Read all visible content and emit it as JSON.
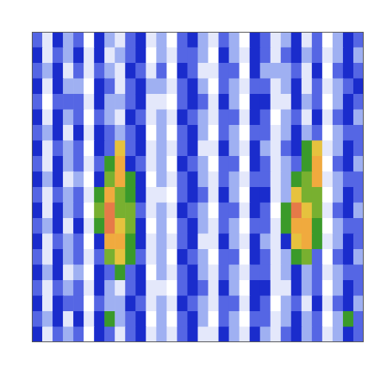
{
  "chart_data": {
    "type": "heatmap",
    "tick_labels": false,
    "grid": false,
    "cells": [
      [
        3,
        1,
        4,
        2,
        3,
        0,
        4,
        2,
        1,
        3,
        4,
        1,
        2,
        0,
        3,
        4,
        2,
        1,
        3,
        2,
        0,
        4,
        3,
        1,
        2,
        4,
        1,
        3,
        0,
        2,
        4,
        3
      ],
      [
        4,
        1,
        3,
        2,
        4,
        1,
        4,
        1,
        2,
        3,
        4,
        0,
        2,
        1,
        3,
        3,
        2,
        0,
        4,
        2,
        1,
        4,
        3,
        1,
        3,
        4,
        2,
        3,
        1,
        2,
        4,
        2
      ],
      [
        3,
        2,
        4,
        1,
        3,
        1,
        3,
        2,
        1,
        4,
        3,
        1,
        3,
        0,
        4,
        3,
        1,
        1,
        3,
        3,
        0,
        4,
        2,
        2,
        2,
        3,
        1,
        4,
        0,
        3,
        4,
        3
      ],
      [
        4,
        1,
        4,
        2,
        2,
        0,
        4,
        3,
        1,
        3,
        4,
        2,
        2,
        1,
        3,
        4,
        2,
        0,
        3,
        2,
        1,
        3,
        3,
        1,
        2,
        4,
        1,
        3,
        1,
        2,
        3,
        4
      ],
      [
        3,
        0,
        3,
        3,
        3,
        1,
        4,
        2,
        2,
        3,
        4,
        1,
        1,
        0,
        3,
        4,
        3,
        1,
        4,
        2,
        0,
        4,
        4,
        1,
        1,
        4,
        2,
        3,
        0,
        2,
        4,
        3
      ],
      [
        4,
        1,
        4,
        2,
        3,
        0,
        3,
        2,
        1,
        4,
        3,
        1,
        2,
        1,
        4,
        3,
        2,
        1,
        3,
        3,
        1,
        4,
        3,
        0,
        2,
        3,
        1,
        4,
        1,
        3,
        4,
        2
      ],
      [
        3,
        2,
        4,
        1,
        4,
        1,
        4,
        3,
        2,
        3,
        4,
        0,
        2,
        0,
        3,
        4,
        2,
        0,
        3,
        2,
        0,
        3,
        3,
        1,
        2,
        4,
        2,
        3,
        0,
        2,
        3,
        3
      ],
      [
        4,
        1,
        3,
        2,
        3,
        0,
        4,
        3,
        7,
        3,
        4,
        1,
        2,
        1,
        3,
        4,
        1,
        1,
        4,
        2,
        1,
        4,
        2,
        1,
        3,
        4,
        5,
        7,
        1,
        2,
        4,
        3
      ],
      [
        3,
        1,
        4,
        2,
        3,
        1,
        3,
        5,
        8,
        4,
        3,
        1,
        2,
        0,
        4,
        3,
        2,
        0,
        3,
        3,
        0,
        4,
        3,
        1,
        2,
        3,
        5,
        8,
        0,
        3,
        4,
        2
      ],
      [
        4,
        2,
        4,
        1,
        2,
        0,
        4,
        6,
        8,
        5,
        4,
        0,
        2,
        1,
        3,
        4,
        2,
        1,
        3,
        2,
        1,
        3,
        3,
        1,
        2,
        5,
        6,
        8,
        1,
        2,
        3,
        3
      ],
      [
        3,
        1,
        3,
        2,
        3,
        1,
        5,
        8,
        6,
        5,
        4,
        1,
        1,
        0,
        3,
        4,
        3,
        1,
        4,
        2,
        0,
        4,
        4,
        1,
        2,
        7,
        6,
        6,
        0,
        2,
        4,
        3
      ],
      [
        4,
        1,
        4,
        2,
        3,
        0,
        6,
        9,
        6,
        6,
        3,
        1,
        2,
        1,
        4,
        3,
        2,
        0,
        3,
        3,
        1,
        4,
        3,
        0,
        5,
        9,
        7,
        6,
        1,
        3,
        4,
        2
      ],
      [
        3,
        2,
        4,
        1,
        4,
        1,
        5,
        9,
        7,
        6,
        4,
        0,
        2,
        0,
        3,
        4,
        2,
        1,
        3,
        2,
        0,
        3,
        3,
        1,
        5,
        8,
        8,
        5,
        0,
        2,
        3,
        3
      ],
      [
        4,
        1,
        3,
        2,
        3,
        0,
        4,
        8,
        8,
        5,
        4,
        1,
        2,
        1,
        3,
        4,
        1,
        1,
        4,
        2,
        1,
        4,
        2,
        1,
        4,
        7,
        8,
        5,
        1,
        2,
        4,
        3
      ],
      [
        3,
        1,
        4,
        2,
        3,
        1,
        3,
        6,
        7,
        5,
        3,
        1,
        2,
        0,
        4,
        3,
        2,
        0,
        3,
        3,
        0,
        4,
        3,
        1,
        2,
        5,
        6,
        3,
        0,
        3,
        4,
        2
      ],
      [
        4,
        2,
        4,
        1,
        2,
        0,
        4,
        3,
        5,
        3,
        4,
        0,
        2,
        1,
        3,
        4,
        2,
        1,
        3,
        2,
        1,
        3,
        3,
        1,
        2,
        4,
        2,
        3,
        1,
        2,
        3,
        3
      ],
      [
        3,
        1,
        3,
        2,
        3,
        1,
        4,
        2,
        1,
        3,
        4,
        1,
        1,
        0,
        3,
        4,
        3,
        1,
        4,
        2,
        0,
        4,
        4,
        1,
        1,
        4,
        2,
        3,
        0,
        2,
        4,
        3
      ],
      [
        4,
        1,
        4,
        3,
        3,
        0,
        3,
        2,
        2,
        4,
        3,
        1,
        2,
        1,
        4,
        3,
        2,
        1,
        3,
        3,
        1,
        4,
        3,
        0,
        2,
        3,
        1,
        4,
        1,
        3,
        4,
        2
      ],
      [
        3,
        2,
        4,
        1,
        4,
        1,
        4,
        5,
        2,
        3,
        4,
        0,
        2,
        0,
        3,
        4,
        2,
        0,
        3,
        2,
        0,
        3,
        3,
        1,
        2,
        4,
        2,
        3,
        0,
        2,
        5,
        3
      ],
      [
        4,
        1,
        3,
        2,
        3,
        0,
        4,
        3,
        1,
        3,
        4,
        1,
        2,
        1,
        3,
        4,
        1,
        1,
        4,
        2,
        1,
        4,
        2,
        1,
        3,
        4,
        2,
        3,
        1,
        2,
        4,
        3
      ]
    ]
  }
}
